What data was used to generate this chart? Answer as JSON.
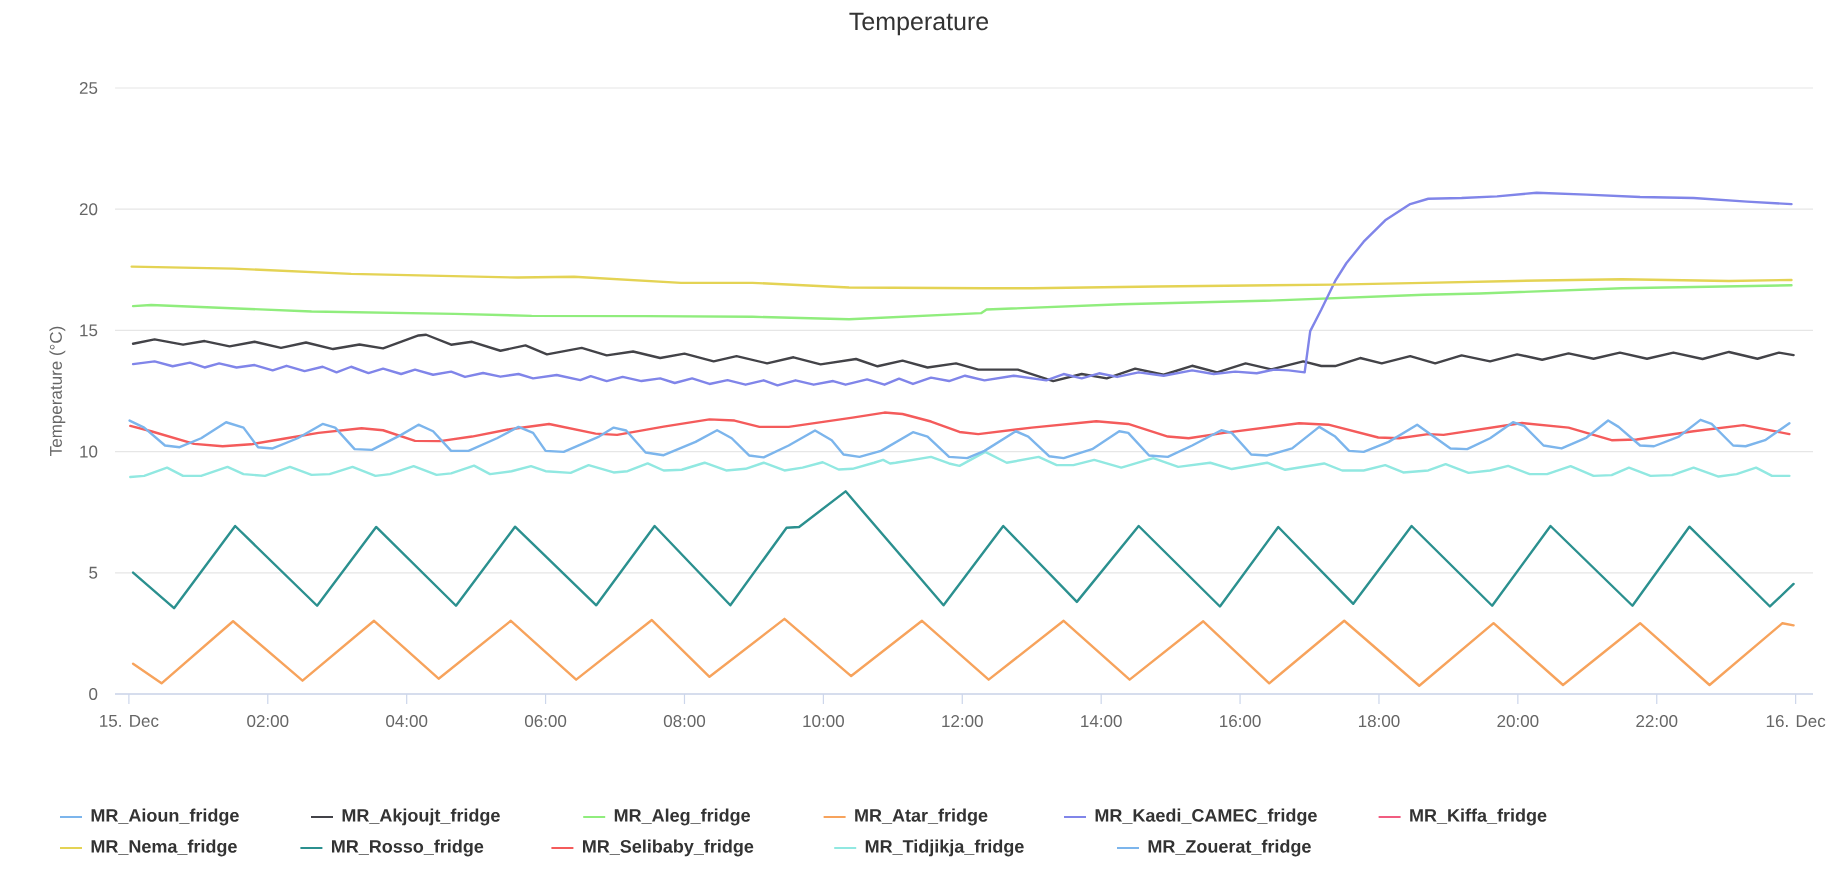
{
  "chart_data": {
    "type": "line",
    "title": "Temperature",
    "ylabel": "Temperature (°C)",
    "xlim": [
      -0.2,
      24.25
    ],
    "ylim": [
      0,
      25
    ],
    "xticks": [
      {
        "value": 0,
        "label": "15. Dec"
      },
      {
        "value": 2,
        "label": "02:00"
      },
      {
        "value": 4,
        "label": "04:00"
      },
      {
        "value": 6,
        "label": "06:00"
      },
      {
        "value": 8,
        "label": "08:00"
      },
      {
        "value": 10,
        "label": "10:00"
      },
      {
        "value": 12,
        "label": "12:00"
      },
      {
        "value": 14,
        "label": "14:00"
      },
      {
        "value": 16,
        "label": "16:00"
      },
      {
        "value": 18,
        "label": "18:00"
      },
      {
        "value": 20,
        "label": "20:00"
      },
      {
        "value": 22,
        "label": "22:00"
      },
      {
        "value": 24,
        "label": "16. Dec"
      }
    ],
    "yticks": [
      0,
      5,
      10,
      15,
      20,
      25
    ],
    "grid": "y",
    "legend": "bottom",
    "marker": "none",
    "line_style": "solid",
    "series": [
      {
        "name": "MR_Aioun_fridge",
        "color": "#7cb5ec",
        "values": [
          null
        ]
      },
      {
        "name": "MR_Akjoujt_fridge",
        "color": "#434348",
        "x": [
          0.06,
          0.37,
          0.78,
          1.09,
          1.45,
          1.81,
          2.19,
          2.55,
          2.94,
          3.32,
          3.66,
          4.17,
          4.28,
          4.64,
          4.94,
          5.35,
          5.71,
          6.02,
          6.52,
          6.88,
          7.26,
          7.65,
          8.0,
          8.42,
          8.75,
          9.19,
          9.57,
          9.96,
          10.47,
          10.78,
          11.14,
          11.5,
          11.91,
          12.23,
          12.8,
          13.31,
          13.72,
          14.08,
          14.49,
          14.9,
          15.31,
          15.67,
          16.08,
          16.45,
          16.91,
          17.17,
          17.37,
          17.73,
          18.04,
          18.45,
          18.81,
          19.19,
          19.6,
          19.99,
          20.35,
          20.73,
          21.09,
          21.47,
          21.86,
          22.24,
          22.66,
          23.04,
          23.45,
          23.76,
          23.97
        ],
        "values": [
          14.45,
          14.63,
          14.41,
          14.56,
          14.34,
          14.53,
          14.28,
          14.5,
          14.23,
          14.42,
          14.26,
          14.79,
          14.82,
          14.41,
          14.53,
          14.16,
          14.38,
          14.01,
          14.28,
          13.97,
          14.13,
          13.86,
          14.04,
          13.72,
          13.94,
          13.64,
          13.89,
          13.6,
          13.82,
          13.52,
          13.75,
          13.47,
          13.64,
          13.38,
          13.38,
          12.91,
          13.2,
          13.02,
          13.42,
          13.17,
          13.54,
          13.27,
          13.64,
          13.39,
          13.72,
          13.53,
          13.53,
          13.86,
          13.64,
          13.94,
          13.64,
          13.97,
          13.72,
          14.01,
          13.79,
          14.05,
          13.83,
          14.08,
          13.83,
          14.08,
          13.82,
          14.11,
          13.83,
          14.08,
          13.98
        ]
      },
      {
        "name": "MR_Aleg_fridge",
        "color": "#90ed7d",
        "x": [
          0.06,
          0.32,
          2.63,
          4.69,
          5.8,
          7.44,
          8.98,
          10.37,
          12.27,
          12.35,
          14.29,
          16.34,
          18.65,
          19.45,
          21.5,
          23.94
        ],
        "values": [
          16.0,
          16.05,
          15.78,
          15.68,
          15.6,
          15.59,
          15.56,
          15.46,
          15.71,
          15.86,
          16.08,
          16.22,
          16.47,
          16.52,
          16.74,
          16.86
        ]
      },
      {
        "name": "MR_Atar_fridge",
        "color": "#f7a35c",
        "x": [
          0.06,
          0.47,
          1.5,
          2.5,
          3.53,
          4.46,
          5.5,
          6.44,
          7.53,
          8.36,
          9.44,
          10.4,
          11.42,
          12.38,
          13.46,
          14.41,
          15.47,
          16.42,
          17.5,
          18.58,
          19.65,
          20.65,
          21.76,
          22.76,
          23.81,
          23.97
        ],
        "values": [
          1.25,
          0.44,
          3.0,
          0.55,
          3.02,
          0.63,
          3.02,
          0.59,
          3.05,
          0.71,
          3.1,
          0.74,
          3.02,
          0.59,
          3.02,
          0.59,
          3.0,
          0.44,
          3.02,
          0.34,
          2.92,
          0.37,
          2.92,
          0.37,
          2.92,
          2.83
        ]
      },
      {
        "name": "MR_Kaedi_CAMEC_fridge",
        "color": "#8085e9",
        "x": [
          0.06,
          0.37,
          0.63,
          0.88,
          1.09,
          1.3,
          1.55,
          1.81,
          2.07,
          2.27,
          2.53,
          2.79,
          2.99,
          3.2,
          3.45,
          3.66,
          3.92,
          4.12,
          4.38,
          4.64,
          4.84,
          5.1,
          5.35,
          5.61,
          5.82,
          6.16,
          6.5,
          6.65,
          6.88,
          7.11,
          7.38,
          7.65,
          7.86,
          8.11,
          8.36,
          8.62,
          8.88,
          9.14,
          9.34,
          9.6,
          9.86,
          10.14,
          10.32,
          10.63,
          10.88,
          11.09,
          11.29,
          11.55,
          11.81,
          12.04,
          12.32,
          12.74,
          13.21,
          13.46,
          13.72,
          13.97,
          14.23,
          14.54,
          14.9,
          15.31,
          15.62,
          15.93,
          16.24,
          16.49,
          16.7,
          16.93,
          17.01,
          17.17,
          17.37,
          17.53,
          17.78,
          18.09,
          18.45,
          18.71,
          19.19,
          19.7,
          20.27,
          20.99,
          21.76,
          22.53,
          23.3,
          23.94
        ],
        "values": [
          13.61,
          13.72,
          13.52,
          13.67,
          13.47,
          13.64,
          13.47,
          13.57,
          13.35,
          13.54,
          13.32,
          13.5,
          13.27,
          13.5,
          13.24,
          13.42,
          13.2,
          13.38,
          13.17,
          13.3,
          13.08,
          13.24,
          13.09,
          13.2,
          13.02,
          13.16,
          12.95,
          13.11,
          12.91,
          13.08,
          12.91,
          13.02,
          12.83,
          13.02,
          12.79,
          12.95,
          12.76,
          12.94,
          12.73,
          12.94,
          12.76,
          12.91,
          12.76,
          12.98,
          12.76,
          13.01,
          12.79,
          13.05,
          12.91,
          13.13,
          12.94,
          13.13,
          12.94,
          13.2,
          13.02,
          13.23,
          13.08,
          13.27,
          13.13,
          13.35,
          13.2,
          13.3,
          13.23,
          13.38,
          13.35,
          13.27,
          14.97,
          15.86,
          17.04,
          17.77,
          18.66,
          19.54,
          20.21,
          20.43,
          20.46,
          20.53,
          20.68,
          20.6,
          20.5,
          20.46,
          20.31,
          20.21
        ]
      },
      {
        "name": "MR_Kiffa_fridge",
        "color": "#f15c80",
        "values": [
          null
        ]
      },
      {
        "name": "MR_Nema_fridge",
        "color": "#e4d354",
        "x": [
          0.04,
          1.5,
          3.2,
          5.6,
          6.41,
          7.95,
          8.98,
          10.37,
          12.32,
          13.0,
          14.8,
          17.37,
          18.65,
          19.96,
          21.5,
          23.04,
          23.94
        ],
        "values": [
          17.63,
          17.55,
          17.33,
          17.18,
          17.21,
          16.96,
          16.96,
          16.77,
          16.74,
          16.74,
          16.81,
          16.89,
          16.96,
          17.04,
          17.11,
          17.04,
          17.08
        ]
      },
      {
        "name": "MR_Rosso_fridge",
        "color": "#2b908f",
        "x": [
          0.06,
          0.65,
          1.53,
          2.71,
          3.56,
          4.71,
          5.56,
          6.73,
          7.57,
          8.66,
          9.47,
          9.65,
          10.32,
          11.73,
          12.59,
          13.65,
          14.54,
          15.71,
          16.55,
          17.63,
          18.47,
          19.63,
          20.47,
          21.65,
          22.47,
          23.63,
          23.97
        ],
        "values": [
          5.01,
          3.54,
          6.93,
          3.64,
          6.89,
          3.64,
          6.9,
          3.66,
          6.93,
          3.66,
          6.86,
          6.89,
          8.36,
          3.66,
          6.93,
          3.8,
          6.93,
          3.61,
          6.89,
          3.72,
          6.93,
          3.64,
          6.93,
          3.64,
          6.9,
          3.61,
          4.54
        ]
      },
      {
        "name": "MR_Selibaby_fridge",
        "color": "#f45b5b",
        "x": [
          0.02,
          0.32,
          0.94,
          1.35,
          1.76,
          2.27,
          2.73,
          3.35,
          3.66,
          4.12,
          4.48,
          4.94,
          5.46,
          6.05,
          6.72,
          7.03,
          7.7,
          8.36,
          8.72,
          9.08,
          9.5,
          10.42,
          10.88,
          11.14,
          11.55,
          11.96,
          12.23,
          13.0,
          13.93,
          14.39,
          14.96,
          15.26,
          15.77,
          16.85,
          17.27,
          17.99,
          18.29,
          18.71,
          18.93,
          20.06,
          20.73,
          21.35,
          21.71,
          22.53,
          23.25,
          23.91
        ],
        "values": [
          11.06,
          10.84,
          10.32,
          10.22,
          10.3,
          10.55,
          10.77,
          10.96,
          10.88,
          10.44,
          10.43,
          10.62,
          10.91,
          11.14,
          10.74,
          10.69,
          11.03,
          11.33,
          11.28,
          11.02,
          11.02,
          11.4,
          11.61,
          11.55,
          11.24,
          10.81,
          10.72,
          10.99,
          11.25,
          11.14,
          10.62,
          10.55,
          10.77,
          11.17,
          11.11,
          10.58,
          10.55,
          10.72,
          10.69,
          11.18,
          10.99,
          10.47,
          10.5,
          10.84,
          11.09,
          10.72
        ]
      },
      {
        "name": "MR_Tidjikja_fridge",
        "color": "#91e8e1",
        "x": [
          0.02,
          0.22,
          0.55,
          0.78,
          1.04,
          1.42,
          1.65,
          1.96,
          2.32,
          2.63,
          2.89,
          3.22,
          3.55,
          3.76,
          4.1,
          4.43,
          4.64,
          4.97,
          5.2,
          5.51,
          5.79,
          6.0,
          6.36,
          6.62,
          6.98,
          7.18,
          7.47,
          7.7,
          7.96,
          8.29,
          8.6,
          8.88,
          9.14,
          9.44,
          9.7,
          9.99,
          10.22,
          10.42,
          10.73,
          10.86,
          10.96,
          11.04,
          11.55,
          11.81,
          11.96,
          12.33,
          12.64,
          13.1,
          13.36,
          13.6,
          13.9,
          14.29,
          14.75,
          15.11,
          15.57,
          15.88,
          16.39,
          16.65,
          17.21,
          17.47,
          17.78,
          18.09,
          18.35,
          18.71,
          18.96,
          19.29,
          19.6,
          19.86,
          20.17,
          20.42,
          20.76,
          21.09,
          21.35,
          21.6,
          21.91,
          22.22,
          22.53,
          22.89,
          23.15,
          23.43,
          23.66,
          23.91
        ],
        "values": [
          8.95,
          9.0,
          9.34,
          9.0,
          9.0,
          9.37,
          9.07,
          9.0,
          9.37,
          9.04,
          9.07,
          9.37,
          9.0,
          9.07,
          9.4,
          9.04,
          9.1,
          9.42,
          9.07,
          9.19,
          9.4,
          9.19,
          9.12,
          9.44,
          9.14,
          9.19,
          9.51,
          9.22,
          9.25,
          9.54,
          9.22,
          9.29,
          9.54,
          9.22,
          9.34,
          9.56,
          9.26,
          9.29,
          9.54,
          9.66,
          9.51,
          9.54,
          9.78,
          9.51,
          9.41,
          9.99,
          9.54,
          9.78,
          9.44,
          9.44,
          9.66,
          9.34,
          9.73,
          9.37,
          9.54,
          9.28,
          9.54,
          9.25,
          9.51,
          9.22,
          9.22,
          9.44,
          9.14,
          9.22,
          9.48,
          9.12,
          9.22,
          9.41,
          9.07,
          9.07,
          9.4,
          9.0,
          9.03,
          9.34,
          9.0,
          9.03,
          9.34,
          8.97,
          9.07,
          9.34,
          9.0,
          9.0
        ]
      },
      {
        "name": "MR_Zouerat_fridge",
        "color": "#7cb5ec",
        "x": [
          0.01,
          0.22,
          0.52,
          0.73,
          1.04,
          1.4,
          1.65,
          1.86,
          2.07,
          2.43,
          2.79,
          2.97,
          3.25,
          3.5,
          3.92,
          4.17,
          4.38,
          4.64,
          4.89,
          5.3,
          5.61,
          5.82,
          6.0,
          6.26,
          6.77,
          6.98,
          7.16,
          7.44,
          7.7,
          8.16,
          8.47,
          8.68,
          8.93,
          9.14,
          9.5,
          9.88,
          10.12,
          10.29,
          10.52,
          10.83,
          11.29,
          11.5,
          11.81,
          12.07,
          12.32,
          12.77,
          12.95,
          13.25,
          13.46,
          13.87,
          14.26,
          14.39,
          14.69,
          14.96,
          15.31,
          15.73,
          15.88,
          16.16,
          16.39,
          16.75,
          17.14,
          17.37,
          17.57,
          17.78,
          18.14,
          18.55,
          19.03,
          19.27,
          19.6,
          19.93,
          20.09,
          20.37,
          20.63,
          20.99,
          21.3,
          21.45,
          21.76,
          21.96,
          22.32,
          22.63,
          22.79,
          23.1,
          23.28,
          23.56,
          23.91
        ],
        "values": [
          11.28,
          10.99,
          10.25,
          10.18,
          10.55,
          11.21,
          10.99,
          10.18,
          10.13,
          10.55,
          11.14,
          10.99,
          10.1,
          10.07,
          10.69,
          11.11,
          10.84,
          10.03,
          10.03,
          10.55,
          11.02,
          10.77,
          10.03,
          9.99,
          10.62,
          10.99,
          10.87,
          9.96,
          9.85,
          10.4,
          10.88,
          10.55,
          9.84,
          9.76,
          10.25,
          10.87,
          10.47,
          9.88,
          9.78,
          10.03,
          10.8,
          10.62,
          9.78,
          9.73,
          10.03,
          10.84,
          10.62,
          9.81,
          9.73,
          10.1,
          10.84,
          10.77,
          9.84,
          9.78,
          10.25,
          10.88,
          10.77,
          9.88,
          9.84,
          10.13,
          11.02,
          10.62,
          10.03,
          9.99,
          10.4,
          11.11,
          10.13,
          10.1,
          10.55,
          11.21,
          11.06,
          10.25,
          10.13,
          10.58,
          11.28,
          11.02,
          10.25,
          10.22,
          10.62,
          11.31,
          11.14,
          10.25,
          10.22,
          10.47,
          11.17
        ]
      }
    ]
  }
}
